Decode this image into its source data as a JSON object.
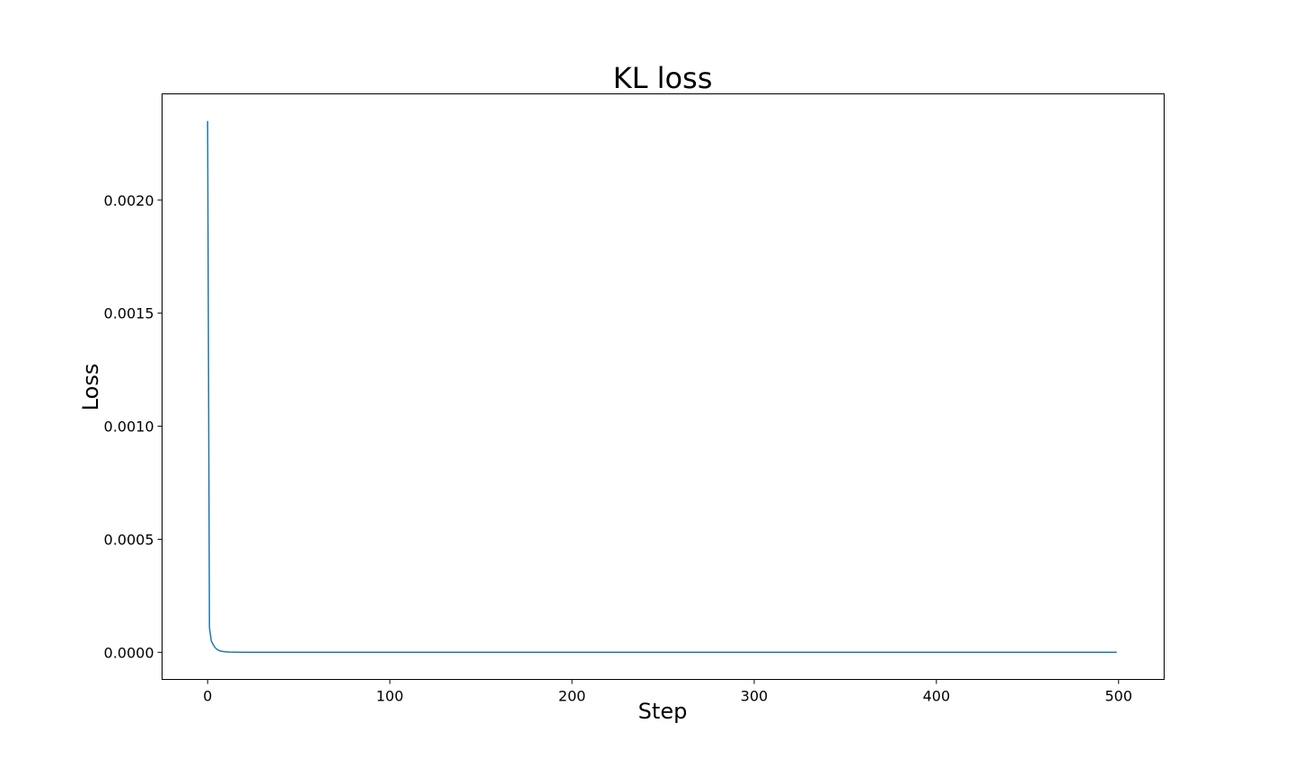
{
  "chart_data": {
    "type": "line",
    "title": "KL loss",
    "xlabel": "Step",
    "ylabel": "Loss",
    "xlim": [
      -25,
      525
    ],
    "ylim": [
      -0.00012,
      0.00247
    ],
    "grid": false,
    "x_ticks": [
      0,
      100,
      200,
      300,
      400,
      500
    ],
    "x_tick_labels": [
      "0",
      "100",
      "200",
      "300",
      "400",
      "500"
    ],
    "y_ticks": [
      0.0,
      0.0005,
      0.001,
      0.0015,
      0.002
    ],
    "y_tick_labels": [
      "0.0000",
      "0.0005",
      "0.0010",
      "0.0015",
      "0.0020"
    ],
    "series": [
      {
        "color": "#1f77b4",
        "x": [
          0,
          1,
          2,
          3,
          4,
          5,
          6,
          7,
          8,
          10,
          12,
          15,
          20,
          30,
          50,
          100,
          200,
          300,
          400,
          499
        ],
        "y": [
          0.00235,
          0.00011,
          5e-05,
          3.5e-05,
          2.2e-05,
          1.4e-05,
          9e-06,
          6e-06,
          4e-06,
          2e-06,
          1e-06,
          5e-07,
          2e-07,
          1e-07,
          0.0,
          0.0,
          0.0,
          0.0,
          0.0,
          0.0
        ]
      }
    ]
  }
}
